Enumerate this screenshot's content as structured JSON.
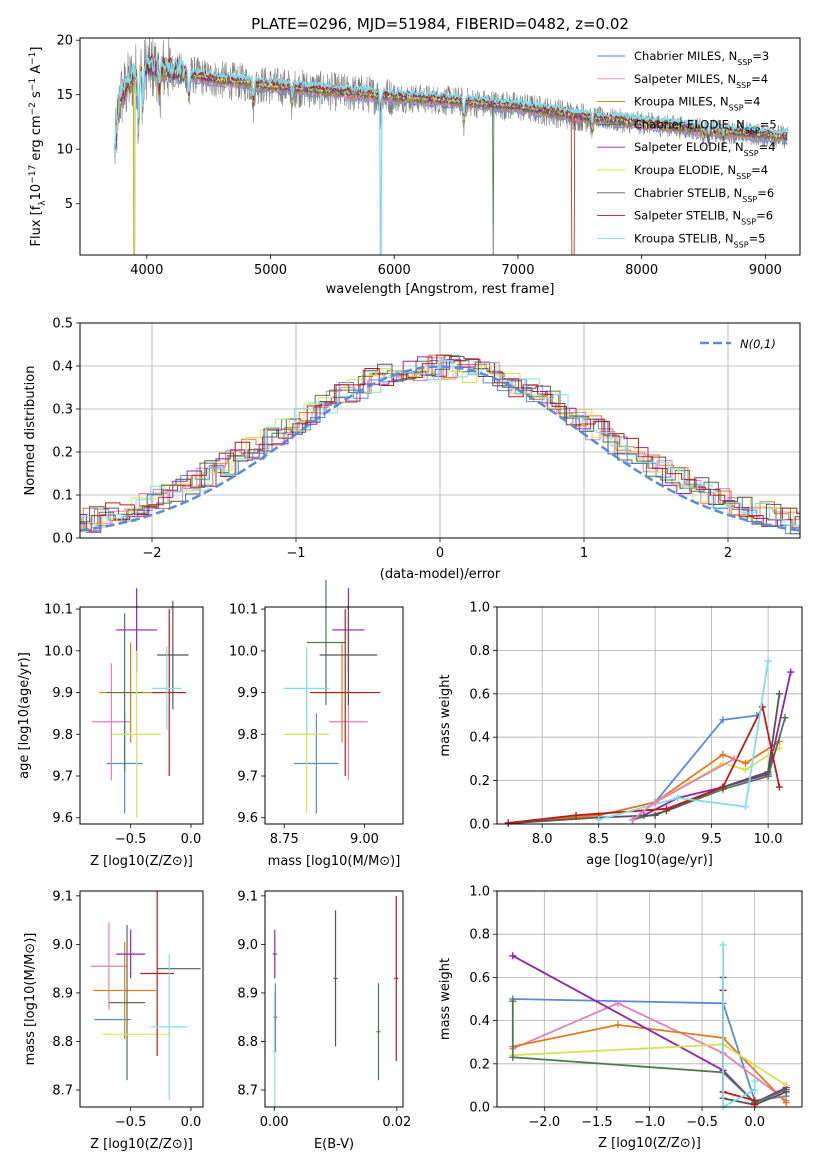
{
  "colors": {
    "Chabrier MILES": "#5b8ad8",
    "Salpeter MILES": "#e37fba",
    "Kroupa MILES": "#ae8c20",
    "Chabrier ELODIE": "#4f7a4f",
    "Salpeter ELODIE": "#8e24aa",
    "Kroupa ELODIE": "#d4e157",
    "Chabrier STELIB": "#555555",
    "Salpeter STELIB": "#b71c1c",
    "Kroupa STELIB": "#80deea",
    "orange": "#e07a1f",
    "dashed": "#5b8ad8",
    "spectrum": "#808080"
  },
  "chart_data": [
    {
      "id": "spectrum",
      "type": "line",
      "title": "PLATE=0296, MJD=51984, FIBERID=0482, z=0.02",
      "xlabel": "wavelength [Angstrom, rest frame]",
      "ylabel": "Flux [f_λ10^-17 erg cm^-2 s^-1 A^-1]",
      "xlim": [
        3460,
        9280
      ],
      "ylim": [
        0.3,
        20.2
      ],
      "xticks": [
        "4000",
        "5000",
        "6000",
        "7000",
        "8000",
        "9000"
      ],
      "yticks": [
        "5",
        "10",
        "15",
        "20"
      ],
      "grid": false,
      "legend": "top-right",
      "legend_entries": [
        {
          "model": "Chabrier MILES",
          "n": "3"
        },
        {
          "model": "Salpeter MILES",
          "n": "4"
        },
        {
          "model": "Kroupa MILES",
          "n": "4"
        },
        {
          "model": "Chabrier ELODIE",
          "n": "5"
        },
        {
          "model": "Salpeter ELODIE",
          "n": "4"
        },
        {
          "model": "Kroupa ELODIE",
          "n": "4"
        },
        {
          "model": "Chabrier STELIB",
          "n": "6"
        },
        {
          "model": "Salpeter STELIB",
          "n": "6"
        },
        {
          "model": "Kroupa STELIB",
          "n": "5"
        }
      ],
      "legend_prefix": "N",
      "legend_sub": "SSP",
      "continuum": [
        [
          3740,
          9.5
        ],
        [
          3780,
          14.5
        ],
        [
          3880,
          16.5
        ],
        [
          4000,
          17.6
        ],
        [
          4200,
          17.2
        ],
        [
          4500,
          16.5
        ],
        [
          5000,
          15.8
        ],
        [
          5500,
          15.3
        ],
        [
          6000,
          14.8
        ],
        [
          6500,
          14.4
        ],
        [
          7000,
          13.9
        ],
        [
          7500,
          13.0
        ],
        [
          8000,
          12.4
        ],
        [
          8500,
          11.8
        ],
        [
          9000,
          11.3
        ],
        [
          9180,
          11.1
        ]
      ],
      "data_xrange": [
        3740,
        9180
      ]
    },
    {
      "id": "residuals",
      "type": "histogram",
      "xlabel": "(data-model)/error",
      "ylabel": "Normed distribution",
      "xlim": [
        -2.5,
        2.5
      ],
      "ylim": [
        0,
        0.5
      ],
      "xticks": [
        "−2",
        "−1",
        "0",
        "1",
        "2"
      ],
      "yticks": [
        "0.0",
        "0.1",
        "0.2",
        "0.3",
        "0.4",
        "0.5"
      ],
      "grid": true,
      "legend": "top-right",
      "legend_label": "N(0,1)",
      "bin_width": 0.1,
      "reference": {
        "type": "normal",
        "mean": 0,
        "sigma": 1
      }
    },
    {
      "id": "age-vs-z",
      "type": "scatter",
      "xlabel": "Z [log10(Z/Z⊙)]",
      "ylabel": "age [log10(age/yr)]",
      "xlim": [
        -0.92,
        0.1
      ],
      "ylim": [
        9.585,
        10.105
      ],
      "xticks": [
        "−0.5",
        "0.0"
      ],
      "ytick_values": [
        9.6,
        9.7,
        9.8,
        9.9,
        10.0,
        10.1
      ],
      "yticks": [
        "9.6",
        "9.7",
        "9.8",
        "9.9",
        "10.0",
        "10.1"
      ],
      "grid": false,
      "points": [
        {
          "model": "Chabrier MILES",
          "x": -0.55,
          "y": 9.73,
          "xerr": 0.15,
          "yerr": 0.12
        },
        {
          "model": "Salpeter MILES",
          "x": -0.66,
          "y": 9.83,
          "xerr": 0.16,
          "yerr": 0.14
        },
        {
          "model": "orange",
          "x": -0.5,
          "y": 9.9,
          "xerr": 0.26,
          "yerr": 0.12
        },
        {
          "model": "Chabrier ELODIE",
          "x": -0.55,
          "y": 9.9,
          "xerr": 0.15,
          "yerr": 0.19
        },
        {
          "model": "Salpeter ELODIE",
          "x": -0.45,
          "y": 10.05,
          "xerr": 0.17,
          "yerr": 0.1
        },
        {
          "model": "Kroupa ELODIE",
          "x": -0.45,
          "y": 9.8,
          "xerr": 0.2,
          "yerr": 0.2
        },
        {
          "model": "Chabrier STELIB",
          "x": -0.15,
          "y": 9.99,
          "xerr": 0.13,
          "yerr": 0.13
        },
        {
          "model": "Salpeter STELIB",
          "x": -0.18,
          "y": 9.9,
          "xerr": 0.14,
          "yerr": 0.2
        },
        {
          "model": "Kroupa STELIB",
          "x": -0.2,
          "y": 9.91,
          "xerr": 0.12,
          "yerr": 0.1
        }
      ]
    },
    {
      "id": "age-vs-mass",
      "type": "scatter",
      "xlabel": "mass [log10(M/M⊙)]",
      "ylabel": "",
      "xlim": [
        8.69,
        9.12
      ],
      "ylim": [
        9.585,
        10.105
      ],
      "xticks": [
        "8.75",
        "9.00"
      ],
      "xtick_values": [
        8.75,
        9.0
      ],
      "ytick_values": [
        9.6,
        9.7,
        9.8,
        9.9,
        10.0,
        10.1
      ],
      "yticks": [
        "9.6",
        "9.7",
        "9.8",
        "9.9",
        "10.0",
        "10.1"
      ],
      "grid": false,
      "points": [
        {
          "model": "Chabrier MILES",
          "x": 8.85,
          "y": 9.73,
          "xerr": 0.07,
          "yerr": 0.12
        },
        {
          "model": "Salpeter MILES",
          "x": 8.95,
          "y": 9.83,
          "xerr": 0.06,
          "yerr": 0.14
        },
        {
          "model": "orange",
          "x": 8.93,
          "y": 9.9,
          "xerr": 0.08,
          "yerr": 0.12
        },
        {
          "model": "Chabrier ELODIE",
          "x": 8.88,
          "y": 10.02,
          "xerr": 0.06,
          "yerr": 0.15
        },
        {
          "model": "Salpeter ELODIE",
          "x": 8.95,
          "y": 10.05,
          "xerr": 0.05,
          "yerr": 0.1
        },
        {
          "model": "Kroupa ELODIE",
          "x": 8.82,
          "y": 9.8,
          "xerr": 0.07,
          "yerr": 0.19
        },
        {
          "model": "Chabrier STELIB",
          "x": 8.95,
          "y": 9.99,
          "xerr": 0.09,
          "yerr": 0.12
        },
        {
          "model": "Salpeter STELIB",
          "x": 8.94,
          "y": 9.9,
          "xerr": 0.11,
          "yerr": 0.2
        },
        {
          "model": "Kroupa STELIB",
          "x": 8.82,
          "y": 9.91,
          "xerr": 0.07,
          "yerr": 0.1
        }
      ]
    },
    {
      "id": "mass-weight-vs-age",
      "type": "line",
      "xlabel": "age [log10(age/yr)]",
      "ylabel": "mass weight",
      "xlim": [
        7.6,
        10.3
      ],
      "ylim": [
        0,
        1.0
      ],
      "xticks": [
        "8.0",
        "8.5",
        "9.0",
        "9.5",
        "10.0"
      ],
      "xtick_values": [
        8.0,
        8.5,
        9.0,
        9.5,
        10.0
      ],
      "yticks": [
        "0.0",
        "0.2",
        "0.4",
        "0.6",
        "0.8",
        "1.0"
      ],
      "grid": true,
      "series": [
        {
          "model": "Chabrier MILES",
          "x": [
            8.8,
            9.0,
            9.6,
            9.9
          ],
          "y": [
            0.02,
            0.1,
            0.48,
            0.5
          ]
        },
        {
          "model": "orange",
          "x": [
            7.7,
            8.5,
            9.0,
            9.6,
            9.8,
            10.1
          ],
          "y": [
            0.005,
            0.04,
            0.1,
            0.32,
            0.28,
            0.38
          ]
        },
        {
          "model": "Salpeter ELODIE",
          "x": [
            8.9,
            9.2,
            9.6,
            10.0,
            10.2
          ],
          "y": [
            0.04,
            0.12,
            0.17,
            0.23,
            0.7
          ]
        },
        {
          "model": "Kroupa ELODIE",
          "x": [
            8.8,
            9.0,
            9.6,
            9.8,
            10.1
          ],
          "y": [
            0.02,
            0.1,
            0.28,
            0.25,
            0.35
          ]
        },
        {
          "model": "Chabrier ELODIE",
          "x": [
            8.8,
            9.1,
            9.6,
            10.0,
            10.15
          ],
          "y": [
            0.02,
            0.06,
            0.16,
            0.22,
            0.49
          ]
        },
        {
          "model": "Chabrier STELIB",
          "x": [
            7.7,
            8.5,
            9.0,
            9.6,
            10.0,
            10.1
          ],
          "y": [
            0.003,
            0.03,
            0.04,
            0.17,
            0.24,
            0.6
          ]
        },
        {
          "model": "Salpeter STELIB",
          "x": [
            7.7,
            8.3,
            9.1,
            9.6,
            9.95,
            10.1
          ],
          "y": [
            0.005,
            0.04,
            0.07,
            0.17,
            0.54,
            0.17
          ]
        },
        {
          "model": "Kroupa STELIB",
          "x": [
            8.5,
            9.2,
            9.8,
            10.0
          ],
          "y": [
            0.02,
            0.12,
            0.08,
            0.75
          ]
        },
        {
          "model": "Salpeter MILES",
          "x": [
            8.8,
            9.0,
            9.7
          ],
          "y": [
            0.02,
            0.1,
            0.3
          ]
        }
      ]
    },
    {
      "id": "mass-vs-z",
      "type": "scatter",
      "xlabel": "Z [log10(Z/Z⊙)]",
      "ylabel": "mass [log10(M/M⊙)]",
      "xlim": [
        -0.92,
        0.1
      ],
      "ylim": [
        8.665,
        9.11
      ],
      "xticks": [
        "−0.5",
        "0.0"
      ],
      "ytick_values": [
        8.7,
        8.8,
        8.9,
        9.0,
        9.1
      ],
      "yticks": [
        "8.7",
        "8.8",
        "8.9",
        "9.0",
        "9.1"
      ],
      "grid": false,
      "points": [
        {
          "model": "Chabrier MILES",
          "x": -0.65,
          "y": 8.845,
          "xerr": 0.15,
          "yerr": 0.0
        },
        {
          "model": "Salpeter MILES",
          "x": -0.68,
          "y": 8.955,
          "xerr": 0.15,
          "yerr": 0.09
        },
        {
          "model": "orange",
          "x": -0.55,
          "y": 8.905,
          "xerr": 0.26,
          "yerr": 0.1
        },
        {
          "model": "Chabrier ELODIE",
          "x": -0.53,
          "y": 8.88,
          "xerr": 0.15,
          "yerr": 0.16
        },
        {
          "model": "Salpeter ELODIE",
          "x": -0.5,
          "y": 8.98,
          "xerr": 0.12,
          "yerr": 0.05
        },
        {
          "model": "Kroupa ELODIE",
          "x": -0.45,
          "y": 8.815,
          "xerr": 0.28,
          "yerr": 0.0
        },
        {
          "model": "Chabrier STELIB",
          "x": -0.1,
          "y": 8.95,
          "xerr": 0.18,
          "yerr": 0.0
        },
        {
          "model": "Salpeter STELIB",
          "x": -0.28,
          "y": 8.94,
          "xerr": 0.14,
          "yerr": 0.17
        },
        {
          "model": "Kroupa STELIB",
          "x": -0.18,
          "y": 8.83,
          "xerr": 0.15,
          "yerr": 0.15
        }
      ]
    },
    {
      "id": "mass-vs-ebv",
      "type": "scatter",
      "xlabel": "E(B-V)",
      "ylabel": "",
      "xlim": [
        -0.0015,
        0.021
      ],
      "ylim": [
        8.665,
        9.11
      ],
      "xticks": [
        "0.00",
        "0.02"
      ],
      "xtick_values": [
        0.0,
        0.02
      ],
      "ytick_values": [
        8.7,
        8.8,
        8.9,
        9.0,
        9.1
      ],
      "yticks": [
        "8.7",
        "8.8",
        "8.9",
        "9.0",
        "9.1"
      ],
      "grid": false,
      "points": [
        {
          "model": "Salpeter ELODIE",
          "x": 0.0001,
          "y": 8.98,
          "yerr": 0.05
        },
        {
          "model": "Kroupa STELIB",
          "x": 0.0001,
          "y": 8.78,
          "yerr": 0.12
        },
        {
          "model": "Chabrier MILES",
          "x": 0.0002,
          "y": 8.85,
          "yerr": 0.07
        },
        {
          "model": "Chabrier STELIB",
          "x": 0.01,
          "y": 8.93,
          "yerr": 0.14
        },
        {
          "model": "Chabrier ELODIE",
          "x": 0.017,
          "y": 8.82,
          "yerr": 0.1
        },
        {
          "model": "Salpeter STELIB",
          "x": 0.0199,
          "y": 8.93,
          "yerr": 0.17
        }
      ]
    },
    {
      "id": "mass-weight-vs-z",
      "type": "line",
      "xlabel": "Z [log10(Z/Z⊙)]",
      "ylabel": "mass weight",
      "xlim": [
        -2.45,
        0.45
      ],
      "ylim": [
        0,
        1.0
      ],
      "xticks": [
        "−2.0",
        "−1.5",
        "−1.0",
        "−0.5",
        "0.0"
      ],
      "xtick_values": [
        -2.0,
        -1.5,
        -1.0,
        -0.5,
        0.0
      ],
      "yticks": [
        "0.0",
        "0.2",
        "0.4",
        "0.6",
        "0.8",
        "1.0"
      ],
      "grid": true,
      "series": [
        {
          "model": "Chabrier MILES",
          "x": [
            -2.3,
            -0.3,
            0.0,
            0.3
          ],
          "y": [
            0.5,
            0.48,
            0.03,
            0.05
          ]
        },
        {
          "model": "Salpeter MILES",
          "x": [
            -2.3,
            -1.3,
            -0.3,
            0.3
          ],
          "y": [
            0.27,
            0.48,
            0.25,
            0.03
          ]
        },
        {
          "model": "orange",
          "x": [
            -2.3,
            -1.3,
            -0.3,
            0.3
          ],
          "y": [
            0.28,
            0.38,
            0.32,
            0.02
          ]
        },
        {
          "model": "Salpeter ELODIE",
          "x": [
            -2.3,
            -0.3,
            0.0,
            0.3
          ],
          "y": [
            0.7,
            0.17,
            0.02,
            0.09
          ]
        },
        {
          "model": "Kroupa ELODIE",
          "x": [
            -2.3,
            -0.3,
            0.3
          ],
          "y": [
            0.24,
            0.29,
            0.1
          ]
        },
        {
          "model": "Chabrier ELODIE",
          "x": [
            -2.3,
            -2.3,
            -0.3,
            0.0,
            0.3
          ],
          "y": [
            0.49,
            0.23,
            0.16,
            0.02,
            0.08
          ]
        },
        {
          "model": "Chabrier STELIB",
          "x": [
            -0.3,
            -0.3,
            0.0,
            0.3
          ],
          "y": [
            0.6,
            0.04,
            0.01,
            0.07
          ]
        },
        {
          "model": "Salpeter STELIB",
          "x": [
            -0.3,
            -0.3,
            0.0,
            0.0
          ],
          "y": [
            0.54,
            0.07,
            0.03,
            0.01
          ]
        },
        {
          "model": "Kroupa STELIB",
          "x": [
            -0.3,
            -0.3,
            0.0,
            0.0
          ],
          "y": [
            0.75,
            0.0,
            0.08,
            0.12
          ]
        }
      ]
    }
  ]
}
